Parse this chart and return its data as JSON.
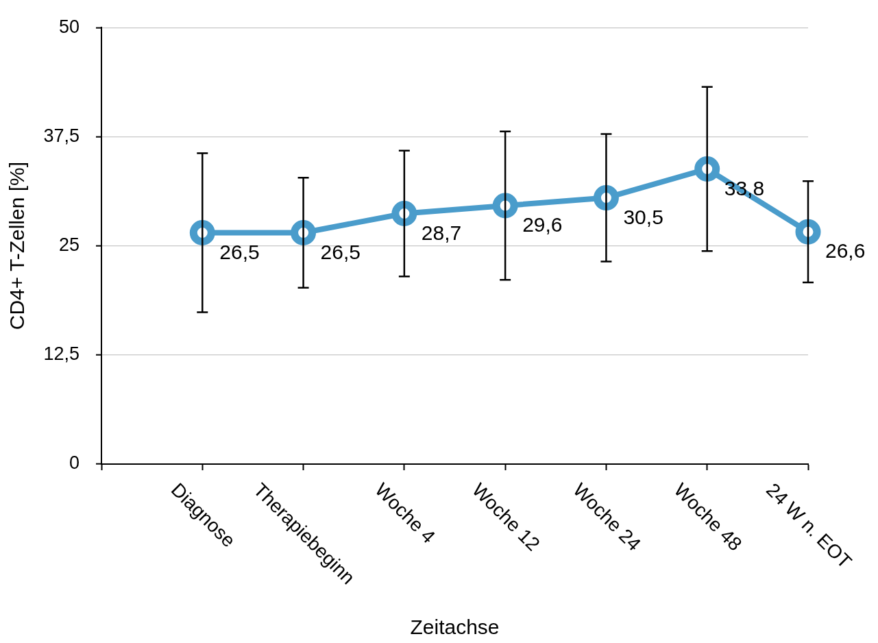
{
  "chart_data": {
    "type": "line",
    "xlabel": "Zeitachse",
    "ylabel": "CD4+ T-Zellen [%]",
    "categories": [
      null,
      "Diagnose",
      "Therapiebeginn",
      "Woche 4",
      "Woche 12",
      "Woche 24",
      "Woche 48",
      "24 W n. EOT"
    ],
    "values": [
      null,
      26.5,
      26.5,
      28.7,
      29.6,
      30.5,
      33.8,
      26.6
    ],
    "errors": [
      null,
      9.1,
      6.3,
      7.2,
      8.5,
      7.3,
      9.4,
      5.8
    ],
    "value_labels": [
      null,
      "26,5",
      "26,5",
      "28,7",
      "29,6",
      "30,5",
      "33,8",
      "26,6"
    ],
    "color": "#4a9ccb",
    "ylim": [
      0,
      50
    ],
    "yticks": [
      0,
      {
        "value": 12.5,
        "label": "12,5"
      },
      25,
      {
        "value": 37.5,
        "label": "37,5"
      },
      50
    ],
    "grid": "y",
    "marker": "circle",
    "line_style": "solid"
  }
}
